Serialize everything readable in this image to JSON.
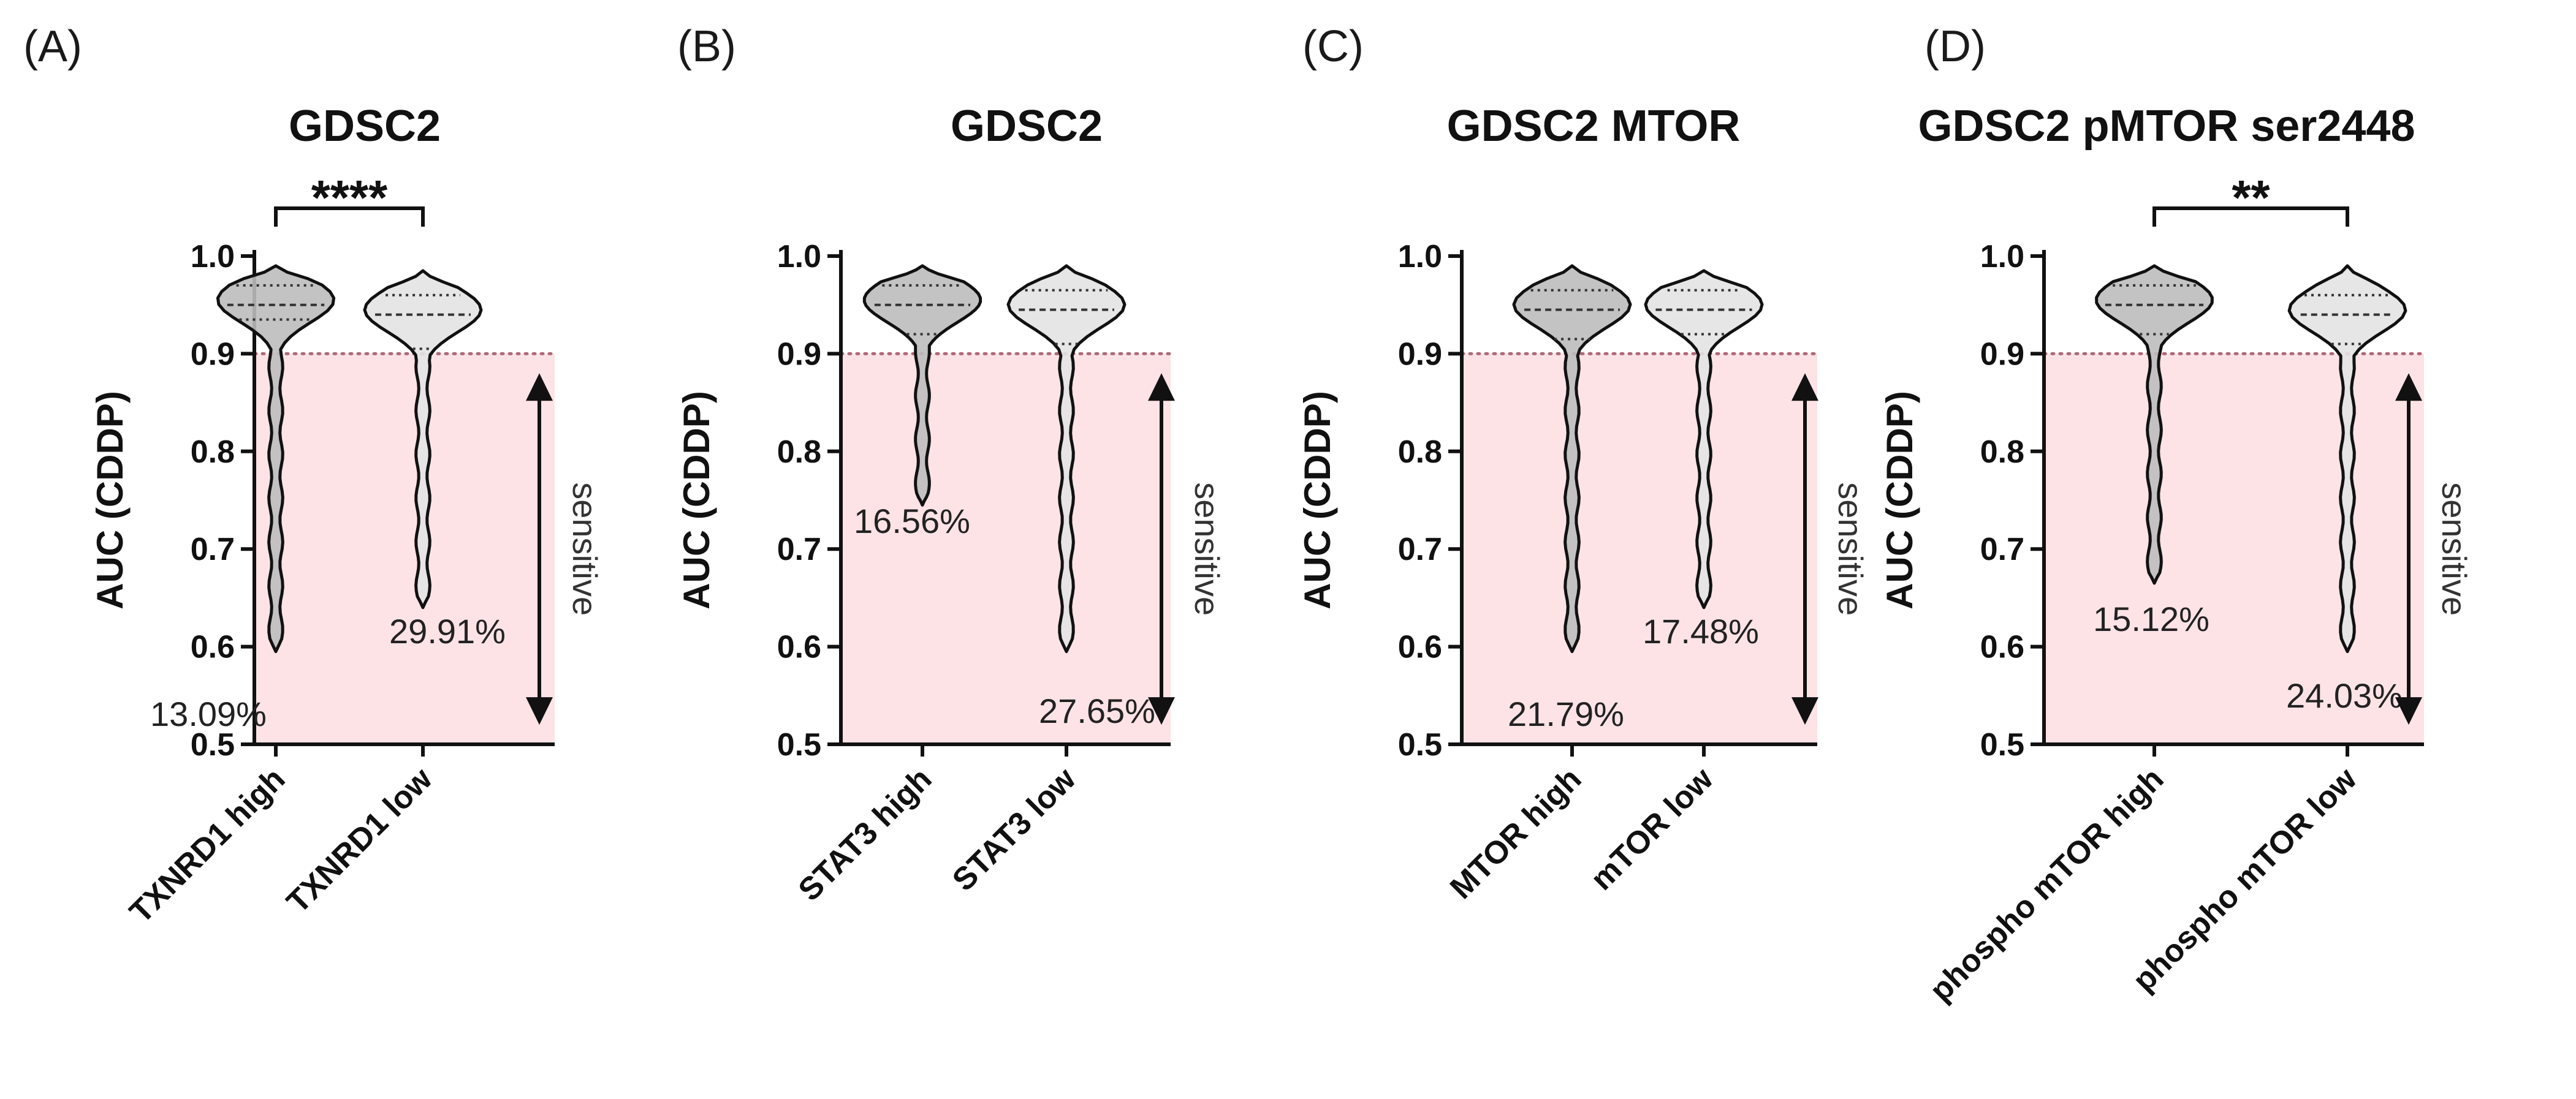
{
  "colors": {
    "sensitive_region": "#fde3e6",
    "threshold_line": "#b06a78",
    "violin_high": "#bdbdbd",
    "violin_low": "#e3e3e3",
    "outline": "#111111"
  },
  "chart_data": [
    {
      "type": "violin",
      "panel_label": "(A)",
      "title": "GDSC2",
      "ylabel": "AUC (CDDP)",
      "ylim": [
        0.5,
        1.0
      ],
      "yticks": [
        "0.5",
        "0.6",
        "0.7",
        "0.8",
        "0.9",
        "1.0"
      ],
      "threshold": 0.9,
      "sensitive_label": "sensitive",
      "significance": "****",
      "categories": [
        "TXNRD1 high",
        "TXNRD1 low"
      ],
      "series": [
        {
          "name": "TXNRD1 high",
          "min": 0.595,
          "max": 0.99,
          "q1": 0.935,
          "median": 0.95,
          "q3": 0.97,
          "sensitive_pct": "13.09%"
        },
        {
          "name": "TXNRD1 low",
          "min": 0.64,
          "max": 0.985,
          "q1": 0.905,
          "median": 0.94,
          "q3": 0.96,
          "sensitive_pct": "29.91%"
        }
      ]
    },
    {
      "type": "violin",
      "panel_label": "(B)",
      "title": "GDSC2",
      "ylabel": "AUC (CDDP)",
      "ylim": [
        0.5,
        1.0
      ],
      "yticks": [
        "0.5",
        "0.6",
        "0.7",
        "0.8",
        "0.9",
        "1.0"
      ],
      "threshold": 0.9,
      "sensitive_label": "sensitive",
      "significance": "",
      "categories": [
        "STAT3 high",
        "STAT3 low"
      ],
      "series": [
        {
          "name": "STAT3 high",
          "min": 0.745,
          "max": 0.99,
          "q1": 0.92,
          "median": 0.95,
          "q3": 0.97,
          "sensitive_pct": "16.56%"
        },
        {
          "name": "STAT3 low",
          "min": 0.595,
          "max": 0.99,
          "q1": 0.91,
          "median": 0.945,
          "q3": 0.965,
          "sensitive_pct": "27.65%"
        }
      ]
    },
    {
      "type": "violin",
      "panel_label": "(C)",
      "title": "GDSC2 MTOR",
      "ylabel": "AUC (CDDP)",
      "ylim": [
        0.5,
        1.0
      ],
      "yticks": [
        "0.5",
        "0.6",
        "0.7",
        "0.8",
        "0.9",
        "1.0"
      ],
      "threshold": 0.9,
      "sensitive_label": "sensitive",
      "significance": "",
      "categories": [
        "MTOR high",
        "mTOR low"
      ],
      "series": [
        {
          "name": "MTOR high",
          "min": 0.595,
          "max": 0.99,
          "q1": 0.915,
          "median": 0.945,
          "q3": 0.965,
          "sensitive_pct": "21.79%"
        },
        {
          "name": "mTOR low",
          "min": 0.64,
          "max": 0.985,
          "q1": 0.92,
          "median": 0.945,
          "q3": 0.965,
          "sensitive_pct": "17.48%"
        }
      ]
    },
    {
      "type": "violin",
      "panel_label": "(D)",
      "title": "GDSC2 pMTOR ser2448",
      "ylabel": "AUC (CDDP)",
      "ylim": [
        0.5,
        1.0
      ],
      "yticks": [
        "0.5",
        "0.6",
        "0.7",
        "0.8",
        "0.9",
        "1.0"
      ],
      "threshold": 0.9,
      "sensitive_label": "sensitive",
      "significance": "**",
      "categories": [
        "phospho mTOR high",
        "phospho mTOR low"
      ],
      "series": [
        {
          "name": "phospho mTOR high",
          "min": 0.665,
          "max": 0.99,
          "q1": 0.92,
          "median": 0.95,
          "q3": 0.97,
          "sensitive_pct": "15.12%"
        },
        {
          "name": "phospho mTOR low",
          "min": 0.595,
          "max": 0.99,
          "q1": 0.91,
          "median": 0.94,
          "q3": 0.96,
          "sensitive_pct": "24.03%"
        }
      ]
    }
  ]
}
